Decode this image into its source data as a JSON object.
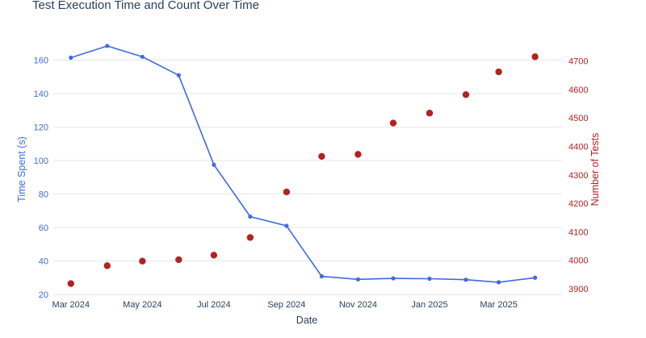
{
  "chart_data": {
    "type": "line",
    "title": "Test Execution Time and Count Over Time",
    "xlabel": "Date",
    "ylabel_left": "Time Spent (s)",
    "ylabel_right": "Number of Tests",
    "x_ticks": [
      "Mar 2024",
      "May 2024",
      "Jul 2024",
      "Sep 2024",
      "Nov 2024",
      "Jan 2025",
      "Mar 2025"
    ],
    "y_left_ticks": [
      "20",
      "40",
      "60",
      "80",
      "100",
      "120",
      "140",
      "160"
    ],
    "y_right_ticks": [
      "3900",
      "4000",
      "4100",
      "4200",
      "4300",
      "4400",
      "4500",
      "4600",
      "4700"
    ],
    "y_left_range": [
      20,
      168
    ],
    "y_right_range": [
      3880,
      4750
    ],
    "grid": true,
    "colors": {
      "left": "#4169e1",
      "right": "#b22222",
      "title": "#2a3f5f",
      "grid": "#e6e6e6"
    },
    "x": [
      "2024-03-01",
      "2024-04-01",
      "2024-05-01",
      "2024-06-01",
      "2024-07-01",
      "2024-08-01",
      "2024-09-01",
      "2024-10-01",
      "2024-11-01",
      "2024-12-01",
      "2025-01-01",
      "2025-02-01",
      "2025-03-01",
      "2025-04-01"
    ],
    "series": [
      {
        "name": "Time Spent (s)",
        "axis": "left",
        "mode": "lines+markers",
        "values": [
          161.5,
          168.5,
          162.0,
          151.0,
          97.5,
          66.5,
          61.0,
          30.8,
          29.0,
          29.6,
          29.4,
          28.8,
          27.3,
          30.0
        ]
      },
      {
        "name": "Number of Tests",
        "axis": "right",
        "mode": "markers",
        "values": [
          3918,
          3981,
          3997,
          4002,
          4018,
          4080,
          4240,
          4365,
          4372,
          4482,
          4517,
          4582,
          4662,
          4715
        ]
      }
    ]
  }
}
